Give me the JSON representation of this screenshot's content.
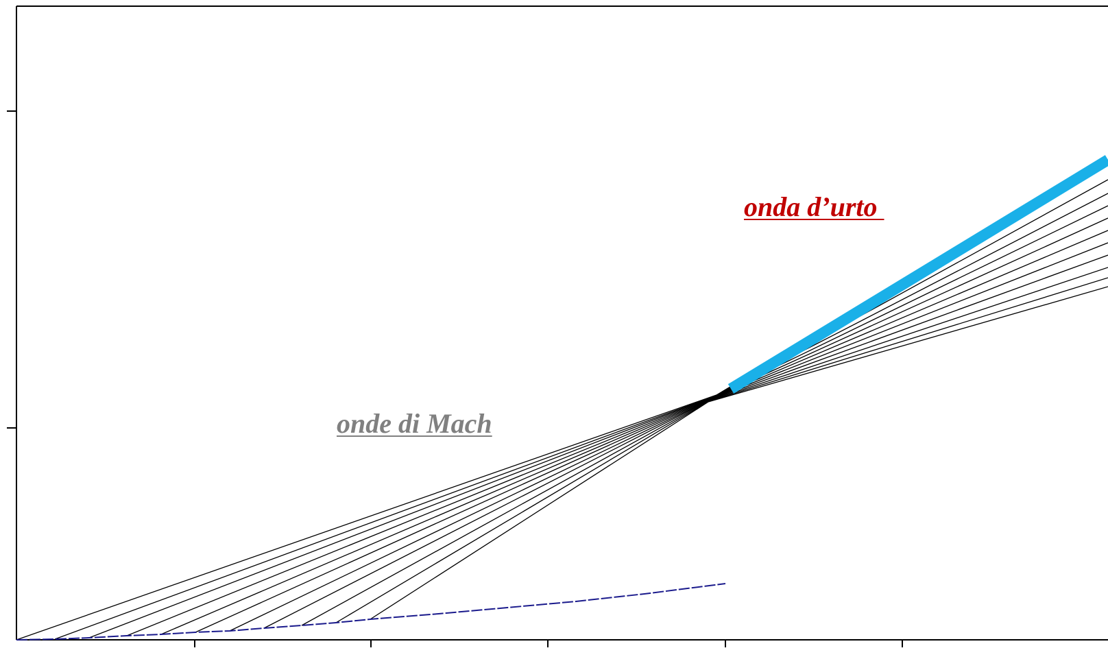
{
  "labels": {
    "shock_wave": "onda d’urto ",
    "mach_waves": "onde di Mach"
  },
  "colors": {
    "shock_wave_text": "#c00000",
    "mach_waves_text": "#808080",
    "shock_line": "#1ab0e8",
    "piston_path": "#1a1a8c",
    "wave_lines": "#000000",
    "axes": "#000000"
  }
}
